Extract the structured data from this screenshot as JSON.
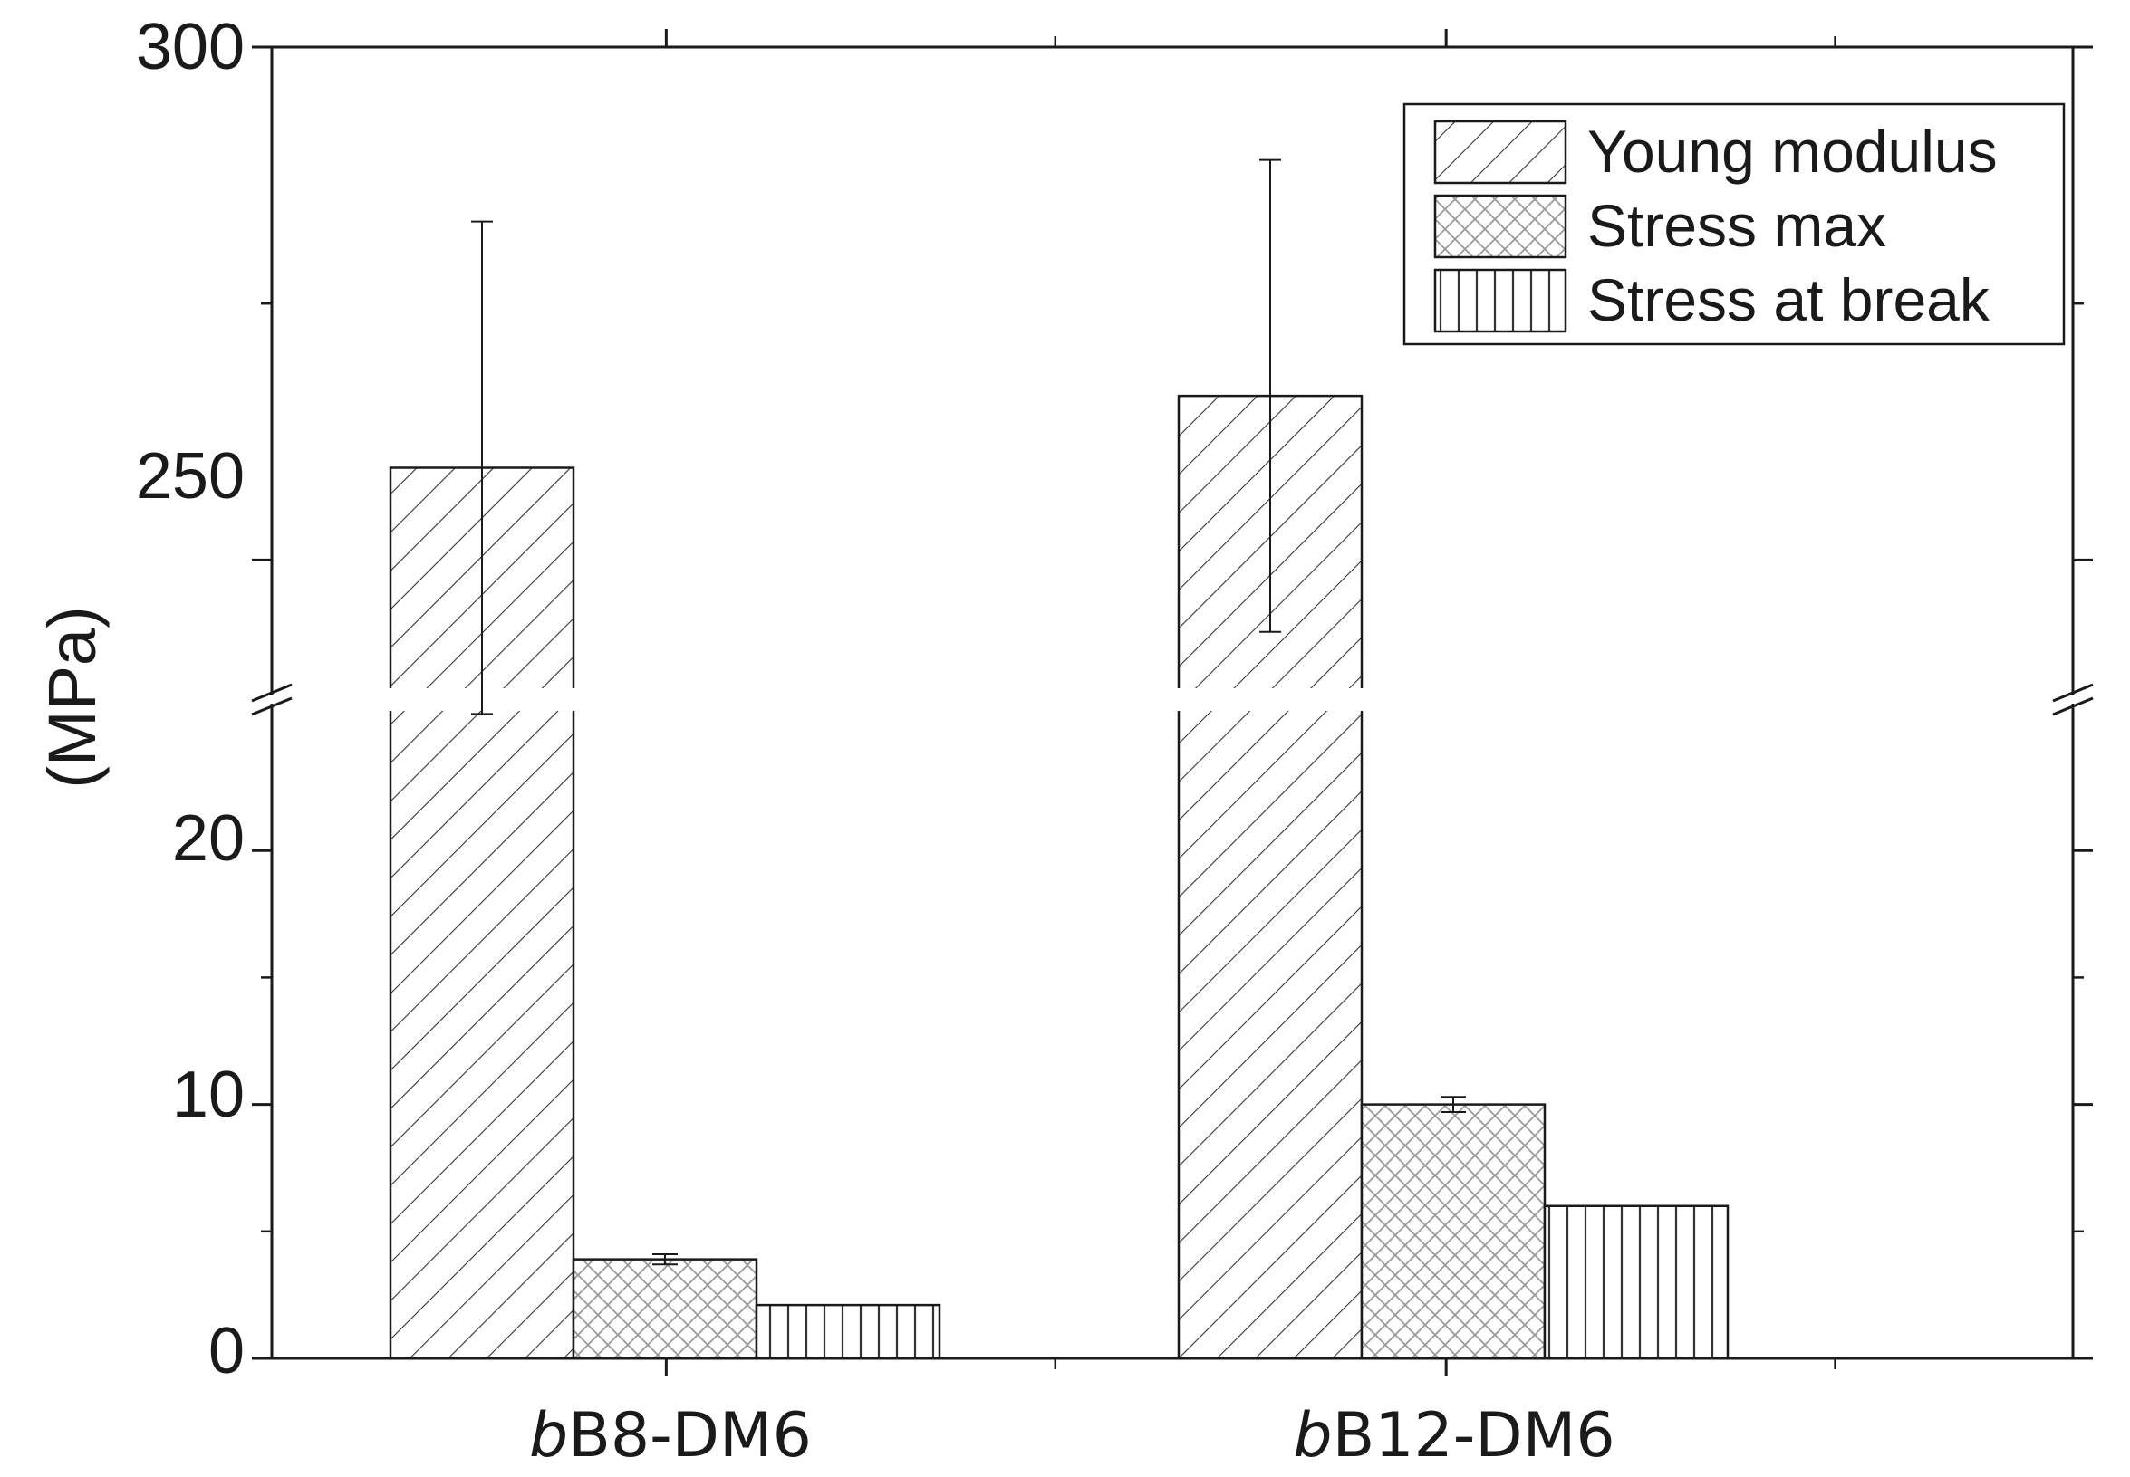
{
  "chart_data": {
    "type": "bar",
    "title": "",
    "xlabel": "",
    "ylabel": "(MPa)",
    "categories": [
      {
        "prefix": "b",
        "rest": "B8-DM6",
        "label": "bB8-DM6"
      },
      {
        "prefix": "b",
        "rest": "B12-DM6",
        "label": "bB12-DM6"
      }
    ],
    "axis_break": true,
    "lower_ylim": [
      0,
      25.5
    ],
    "upper_ylim": [
      237.5,
      300
    ],
    "yticks_lower": [
      0,
      10,
      20
    ],
    "yticks_upper": [
      250,
      300
    ],
    "tick_labels": {
      "y0": "0",
      "y10": "10",
      "y20": "20",
      "y250": "250",
      "y300": "300"
    },
    "series": [
      {
        "name": "Young modulus",
        "pattern": "diagonal-hatch",
        "values": [
          259,
          266
        ],
        "errors": [
          24,
          23
        ]
      },
      {
        "name": "Stress max",
        "pattern": "crosshatch",
        "values": [
          3.9,
          10.0
        ],
        "errors": [
          0.2,
          0.3
        ]
      },
      {
        "name": "Stress at break",
        "pattern": "vertical-hatch",
        "values": [
          2.1,
          6.0
        ],
        "errors": [
          0,
          0
        ]
      }
    ],
    "legend": {
      "position": "top-right",
      "entries": [
        "Young modulus",
        "Stress max",
        "Stress at break"
      ]
    },
    "grid": false,
    "colors": {
      "stroke": "#1a1a1a",
      "hatch": "#333333",
      "cross": "#9a9a9a",
      "background": "#ffffff"
    }
  }
}
